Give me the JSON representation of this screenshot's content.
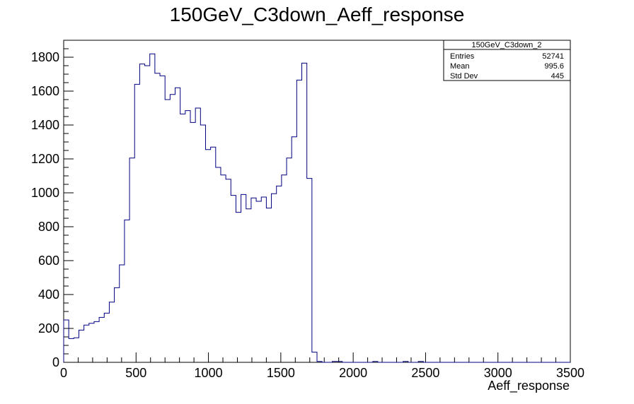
{
  "chart_data": {
    "type": "histogram",
    "title": "150GeV_C3down_Aeff_response",
    "xlabel": "Aeff_response",
    "ylabel": "",
    "xlim": [
      0,
      3500
    ],
    "ylim": [
      0,
      1900
    ],
    "x_ticks": [
      0,
      500,
      1000,
      1500,
      2000,
      2500,
      3000,
      3500
    ],
    "y_ticks": [
      0,
      200,
      400,
      600,
      800,
      1000,
      1200,
      1400,
      1600,
      1800
    ],
    "bin_width": 35,
    "bin_values": [
      250,
      140,
      145,
      190,
      220,
      230,
      240,
      265,
      290,
      355,
      440,
      575,
      840,
      1205,
      1640,
      1760,
      1750,
      1820,
      1705,
      1690,
      1550,
      1580,
      1620,
      1465,
      1485,
      1415,
      1500,
      1400,
      1255,
      1270,
      1150,
      1105,
      1080,
      985,
      885,
      990,
      905,
      970,
      950,
      975,
      910,
      995,
      1040,
      1105,
      1205,
      1330,
      1665,
      1765,
      1085,
      60,
      5,
      0,
      0,
      5,
      5,
      0,
      0,
      0,
      0,
      0,
      0,
      5,
      0,
      0,
      0,
      0,
      0,
      5,
      0,
      0,
      5,
      0,
      0,
      0,
      0,
      0,
      0,
      0,
      0,
      0,
      0,
      0,
      0,
      0,
      0,
      0,
      0,
      0,
      0,
      0,
      0,
      0,
      0,
      0,
      0,
      0,
      0,
      0,
      0,
      0
    ],
    "grid": false,
    "line_color": "#000080",
    "legend": "none",
    "stats_box": {
      "placement": "top-right",
      "name": "150GeV_C3down_2",
      "rows": [
        {
          "label": "Entries",
          "value": "52741"
        },
        {
          "label": "Mean",
          "value": "995.6"
        },
        {
          "label": "Std Dev",
          "value": "445"
        }
      ]
    }
  }
}
